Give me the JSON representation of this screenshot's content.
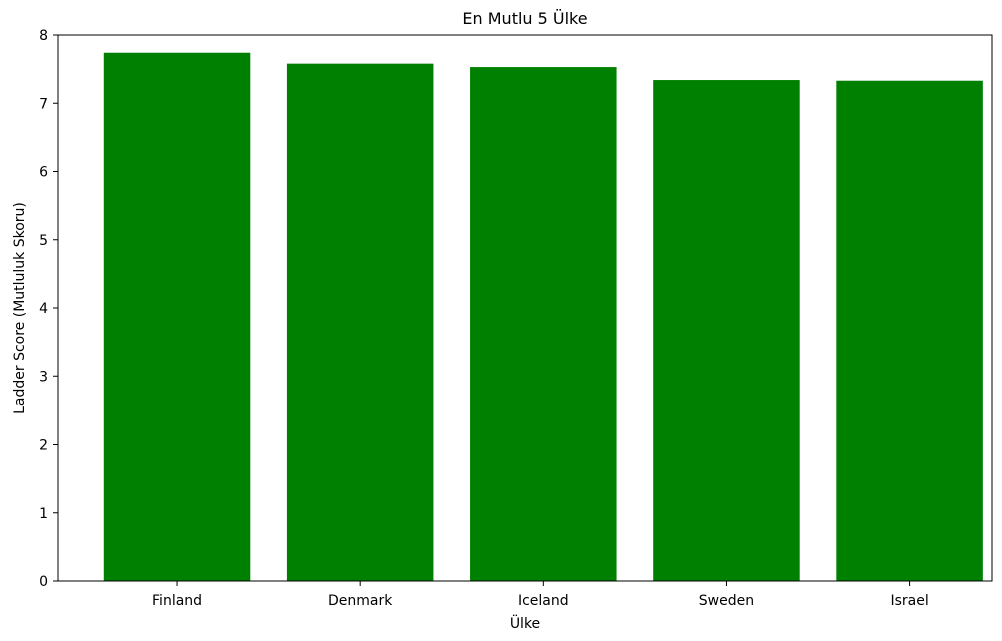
{
  "chart_data": {
    "type": "bar",
    "title": "En Mutlu 5 Ülke",
    "xlabel": "Ülke",
    "ylabel": "Ladder Score (Mutluluk Skoru)",
    "categories": [
      "Finland",
      "Denmark",
      "Iceland",
      "Sweden",
      "Israel"
    ],
    "values": [
      7.74,
      7.58,
      7.53,
      7.34,
      7.33
    ],
    "ylim": [
      0,
      8
    ],
    "yticks": [
      "0",
      "1",
      "2",
      "3",
      "4",
      "5",
      "6",
      "7",
      "8"
    ],
    "bar_color": "#008000",
    "grid": false,
    "legend": "none"
  }
}
